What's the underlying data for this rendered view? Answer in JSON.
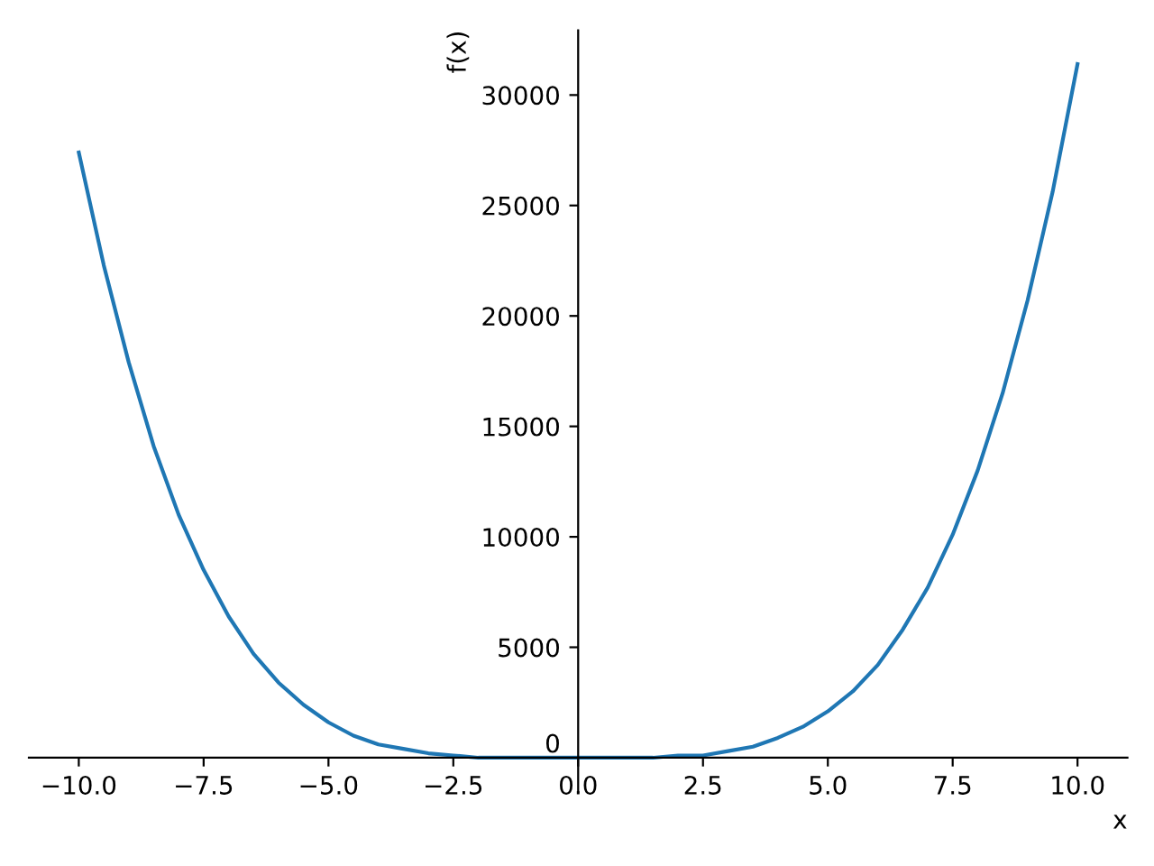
{
  "chart_data": {
    "type": "line",
    "xlabel": "x",
    "ylabel": "f(x)",
    "x": [
      -10,
      -9.5,
      -9,
      -8.5,
      -8,
      -7.5,
      -7,
      -6.5,
      -6,
      -5.5,
      -5,
      -4.5,
      -4,
      -3.5,
      -3,
      -2.5,
      -2,
      -1.5,
      -1,
      -0.5,
      0,
      0.5,
      1,
      1.5,
      2,
      2.5,
      3,
      3.5,
      4,
      4.5,
      5,
      5.5,
      6,
      6.5,
      7,
      7.5,
      8,
      8.5,
      9,
      9.5,
      10
    ],
    "series": [
      {
        "color": "#1f77b4",
        "values": [
          27400,
          22300,
          17900,
          14100,
          11000,
          8500,
          6400,
          4700,
          3400,
          2400,
          1600,
          1000,
          600,
          400,
          200,
          100,
          0,
          0,
          0,
          0,
          0,
          0,
          0,
          0,
          100,
          100,
          300,
          500,
          900,
          1400,
          2100,
          3000,
          4200,
          5800,
          7700,
          10100,
          13000,
          16500,
          20700,
          25600,
          31400
        ]
      }
    ],
    "xlim": [
      -11,
      11
    ],
    "ylim": [
      -1570,
      32930
    ],
    "xticks": [
      {
        "value": -10,
        "label": "−10.0"
      },
      {
        "value": -7.5,
        "label": "−7.5"
      },
      {
        "value": -5,
        "label": "−5.0"
      },
      {
        "value": -2.5,
        "label": "−2.5"
      },
      {
        "value": 0,
        "label": "0.0"
      },
      {
        "value": 2.5,
        "label": "2.5"
      },
      {
        "value": 5,
        "label": "5.0"
      },
      {
        "value": 7.5,
        "label": "7.5"
      },
      {
        "value": 10,
        "label": "10.0"
      }
    ],
    "yticks": [
      0,
      5000,
      10000,
      15000,
      20000,
      25000,
      30000
    ],
    "grid": false,
    "legend": false,
    "marker": "none",
    "line_style": "solid"
  }
}
